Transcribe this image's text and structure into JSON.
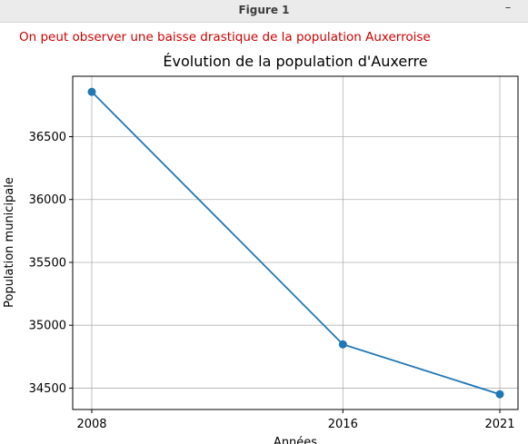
{
  "window": {
    "title": "Figure 1",
    "minimize_glyph": "–"
  },
  "annotation": {
    "text": "On peut observer une baisse drastique de la population Auxerroise",
    "color": "#cc0000"
  },
  "chart_data": {
    "type": "line",
    "title": "Évolution de la population d'Auxerre",
    "xlabel": "Années",
    "ylabel": "Population municipale",
    "categories": [
      "2008",
      "2016",
      "2021"
    ],
    "x": [
      2008,
      2016,
      2021
    ],
    "series": [
      {
        "values": [
          36856,
          34848,
          34451
        ],
        "color": "#1f77b4",
        "marker": "circle"
      }
    ],
    "yticks": [
      34500,
      35000,
      35500,
      36000,
      36500
    ],
    "ylim": [
      34330,
      36980
    ],
    "grid": true
  }
}
